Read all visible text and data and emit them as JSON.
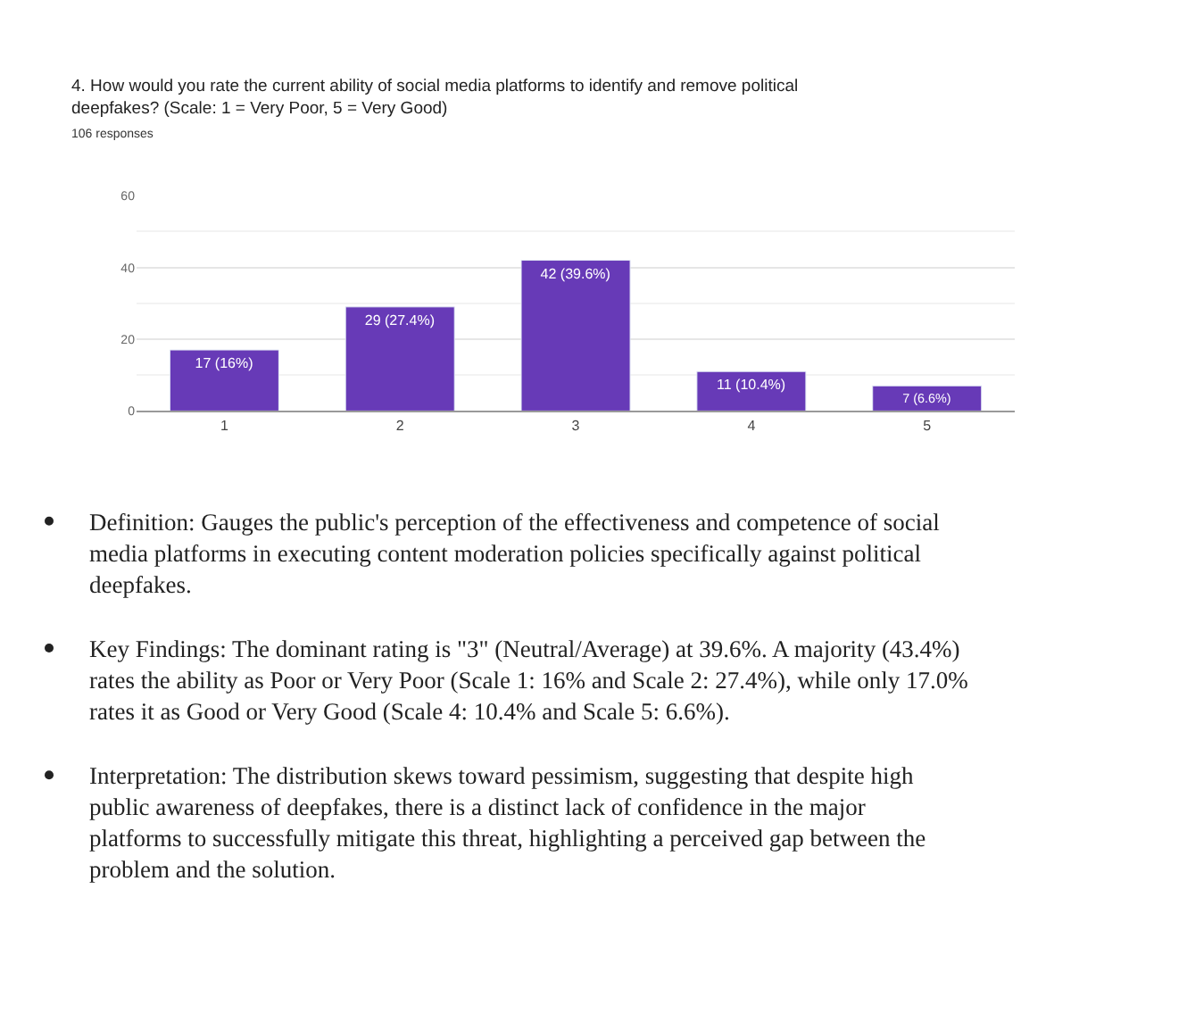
{
  "chart_data": {
    "type": "bar",
    "title": "4. How would you rate the current ability of social media platforms to identify and remove political deepfakes? (Scale: 1 = Very Poor, 5 = Very Good)",
    "subtitle": "106 responses",
    "categories": [
      "1",
      "2",
      "3",
      "4",
      "5"
    ],
    "values": [
      17,
      29,
      42,
      11,
      7
    ],
    "value_labels": [
      "17 (16%)",
      "29 (27.4%)",
      "42 (39.6%)",
      "11 (10.4%)",
      "7 (6.6%)"
    ],
    "color": "#673ab7",
    "ylim": [
      0,
      60
    ],
    "yticks": [
      0,
      20,
      40,
      60
    ],
    "grid": "y",
    "legend": false,
    "annotations": [
      "Definition: Gauges the public's perception of the effectiveness and competence of social media platforms in executing content moderation policies specifically against political deepfakes.",
      "Key Findings: The dominant rating is \"3\" (Neutral/Average) at 39.6%. A majority (43.4%) rates the ability as Poor or Very Poor (Scale 1: 16% and Scale 2: 27.4%), while only 17.0% rates it as Good or Very Good (Scale 4: 10.4% and Scale 5: 6.6%).",
      "Interpretation: The distribution skews toward pessimism, suggesting that despite high public awareness of deepfakes, there is a distinct lack of confidence in the major platforms to successfully mitigate this threat, highlighting a perceived gap between the problem and the solution."
    ]
  }
}
